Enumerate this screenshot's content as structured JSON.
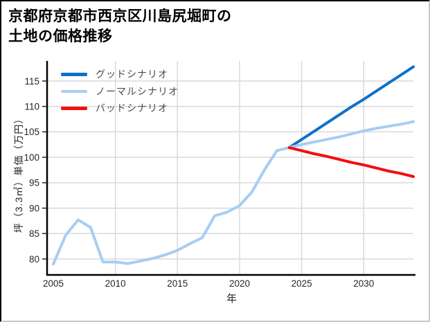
{
  "title": {
    "line1": "京都府京都市西京区川島尻堀町の",
    "line2": "土地の価格推移"
  },
  "chart_data": {
    "type": "line",
    "title": "京都府京都市西京区川島尻堀町の土地の価格推移",
    "xlabel": "年",
    "ylabel": "坪（3.3㎡）単価（万円）",
    "xlim": [
      2004.5,
      2034
    ],
    "ylim": [
      76.9,
      118.9
    ],
    "xticks": [
      2005,
      2010,
      2015,
      2020,
      2025,
      2030
    ],
    "yticks": [
      80,
      85,
      90,
      95,
      100,
      105,
      110,
      115
    ],
    "grid": true,
    "legend_position": "top-left",
    "colors": {
      "grid": "#d9d9d9",
      "axis": "#000000",
      "tick_label": "#262626",
      "good": "#1070c8",
      "normal": "#a7cdf2",
      "bad": "#f20f0c"
    },
    "series": [
      {
        "name": "グッドシナリオ",
        "key": "good",
        "color": "#1070c8",
        "x": [
          2024,
          2025,
          2026,
          2027,
          2028,
          2029,
          2030,
          2031,
          2032,
          2033,
          2034
        ],
        "y": [
          101.9,
          103.5,
          105.1,
          106.7,
          108.3,
          109.9,
          111.4,
          113.0,
          114.6,
          116.2,
          117.8
        ]
      },
      {
        "name": "ノーマルシナリオ",
        "key": "normal",
        "color": "#a7cdf2",
        "x": [
          2005,
          2006,
          2007,
          2008,
          2009,
          2010,
          2011,
          2012,
          2013,
          2014,
          2015,
          2016,
          2017,
          2018,
          2019,
          2020,
          2021,
          2022,
          2023,
          2024,
          2025,
          2026,
          2027,
          2028,
          2029,
          2030,
          2031,
          2032,
          2033,
          2034
        ],
        "y": [
          79.0,
          84.7,
          87.7,
          86.2,
          79.4,
          79.4,
          79.1,
          79.6,
          80.1,
          80.8,
          81.7,
          83.0,
          84.2,
          88.5,
          89.2,
          90.5,
          93.2,
          97.5,
          101.3,
          101.9,
          102.5,
          103.0,
          103.5,
          104.0,
          104.6,
          105.2,
          105.7,
          106.1,
          106.5,
          107.0
        ]
      },
      {
        "name": "バッドシナリオ",
        "key": "bad",
        "color": "#f20f0c",
        "x": [
          2024,
          2025,
          2026,
          2027,
          2028,
          2029,
          2030,
          2031,
          2032,
          2033,
          2034
        ],
        "y": [
          101.9,
          101.3,
          100.7,
          100.2,
          99.6,
          99.0,
          98.5,
          97.9,
          97.3,
          96.8,
          96.2
        ]
      }
    ]
  }
}
